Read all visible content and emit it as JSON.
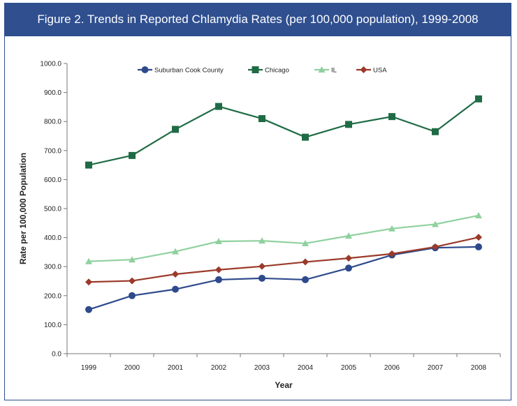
{
  "title": "Figure 2. Trends in Reported Chlamydia Rates (per 100,000 population), 1999-2008",
  "chart_data": {
    "type": "line",
    "categories": [
      "1999",
      "2000",
      "2001",
      "2002",
      "2003",
      "2004",
      "2005",
      "2006",
      "2007",
      "2008"
    ],
    "ylim": [
      0,
      1000
    ],
    "yticks": [
      "0.0",
      "100.0",
      "200.0",
      "300.0",
      "400.0",
      "500.0",
      "600.0",
      "700.0",
      "800.0",
      "900.0",
      "1000.0"
    ],
    "xlabel": "Year",
    "ylabel": "Rate per 100,000 Population",
    "legend_position": "top",
    "series": [
      {
        "name": "Suburban Cook County",
        "color": "#2e4a8c",
        "marker": "circle",
        "values": [
          152,
          200,
          222,
          255,
          260,
          255,
          295,
          340,
          365,
          368
        ]
      },
      {
        "name": "Chicago",
        "color": "#1f6b45",
        "marker": "square",
        "values": [
          650,
          683,
          773,
          852,
          810,
          746,
          790,
          817,
          765,
          878
        ]
      },
      {
        "name": "IL",
        "color": "#8fd19e",
        "marker": "triangle",
        "values": [
          318,
          324,
          352,
          387,
          389,
          380,
          406,
          431,
          446,
          476
        ]
      },
      {
        "name": "USA",
        "color": "#9b3a2a",
        "marker": "diamond",
        "values": [
          247,
          251,
          274,
          289,
          301,
          316,
          329,
          344,
          368,
          401
        ]
      }
    ]
  }
}
